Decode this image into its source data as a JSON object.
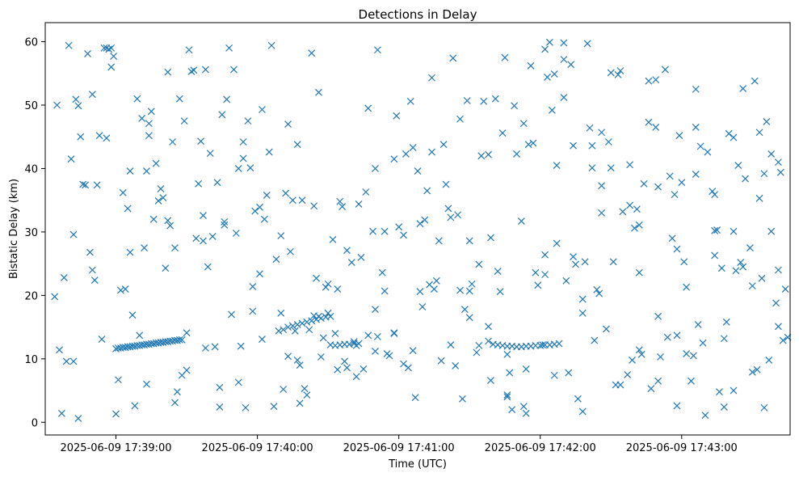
{
  "chart_data": {
    "type": "scatter",
    "title": "Detections in Delay",
    "xlabel": "Time (UTC)",
    "ylabel": "Bistatic Delay (km)",
    "marker": "x",
    "color": "#1f77b4",
    "grid": false,
    "x_unit": "seconds after 2025-06-09 17:38:00 UTC",
    "xlim": [
      30,
      346
    ],
    "ylim": [
      -2,
      63
    ],
    "x_ticks": [
      {
        "value": 60,
        "label": "2025-06-09 17:39:00"
      },
      {
        "value": 120,
        "label": "2025-06-09 17:40:00"
      },
      {
        "value": 180,
        "label": "2025-06-09 17:41:00"
      },
      {
        "value": 240,
        "label": "2025-06-09 17:42:00"
      },
      {
        "value": 300,
        "label": "2025-06-09 17:43:00"
      }
    ],
    "y_ticks": [
      {
        "value": 0,
        "label": "0"
      },
      {
        "value": 10,
        "label": "10"
      },
      {
        "value": 20,
        "label": "20"
      },
      {
        "value": 30,
        "label": "30"
      },
      {
        "value": 40,
        "label": "40"
      },
      {
        "value": 50,
        "label": "50"
      },
      {
        "value": 60,
        "label": "60"
      }
    ],
    "series": [
      {
        "x": [
          60,
          61,
          62,
          63,
          64,
          65,
          66,
          67,
          68,
          69,
          70,
          71,
          72,
          73,
          74,
          75,
          76,
          77,
          78,
          79,
          80,
          81,
          82,
          83,
          84,
          85,
          86,
          87,
          88,
          129,
          131,
          133,
          135,
          137,
          139,
          141,
          143,
          145,
          147,
          149,
          151,
          153,
          155,
          157,
          159,
          161,
          163,
          220,
          222,
          224,
          226,
          228,
          230,
          232,
          234,
          236,
          238,
          240,
          242,
          244,
          246,
          248,
          38,
          40,
          42,
          45,
          50,
          52,
          55,
          57,
          62,
          65,
          70,
          73,
          78,
          82,
          86,
          92,
          96,
          100,
          104,
          108,
          112,
          116,
          122,
          126,
          132,
          136,
          140,
          144,
          148,
          150,
          154,
          158,
          162,
          166,
          170,
          174,
          178,
          182,
          186,
          190,
          194,
          198,
          202,
          206,
          210,
          214,
          218,
          222,
          226,
          230,
          234,
          238,
          242,
          246,
          250,
          254,
          258,
          262,
          266,
          270,
          274,
          278,
          282,
          286,
          290,
          294,
          298,
          302,
          306,
          310,
          314,
          318,
          322,
          326,
          330,
          334,
          338,
          36,
          41,
          44,
          48,
          53,
          58,
          63,
          67,
          72,
          76,
          81,
          85,
          89,
          94,
          98,
          102,
          106,
          110,
          115,
          119,
          124,
          128,
          133,
          137,
          142,
          146,
          151,
          155,
          160,
          164,
          169,
          173,
          178,
          182,
          187,
          191,
          196,
          200,
          205,
          209,
          214,
          218,
          223,
          227,
          232,
          236,
          241,
          245,
          250,
          254,
          259,
          263,
          268,
          272,
          277,
          281,
          286,
          290,
          295,
          299,
          304,
          308,
          313,
          317,
          322,
          326,
          331,
          335,
          340,
          343,
          37,
          43,
          47,
          51,
          56,
          61,
          66,
          71,
          75,
          80,
          84,
          88,
          93,
          97,
          101,
          105,
          109,
          113,
          117,
          121,
          125,
          130,
          134,
          139,
          143,
          147,
          152,
          156,
          161,
          165,
          170,
          174,
          179,
          183,
          188,
          192,
          197,
          201,
          206,
          210,
          215,
          219,
          224,
          228,
          233,
          237,
          242,
          246,
          251,
          255,
          260,
          264,
          269,
          273,
          278,
          282,
          287,
          291,
          296,
          300,
          305,
          309,
          314,
          318,
          323,
          327,
          332,
          336,
          341,
          344,
          39,
          46,
          54,
          59,
          64,
          69,
          74,
          79,
          83,
          87,
          91,
          95,
          99,
          103,
          107,
          111,
          114,
          118,
          123,
          127,
          131,
          135,
          138,
          141,
          145,
          149,
          153,
          157,
          163,
          167,
          171,
          175,
          180,
          184,
          189,
          193,
          199,
          203,
          207,
          211,
          216,
          221,
          225,
          229,
          235,
          239,
          243,
          247,
          252,
          256,
          261,
          265,
          270,
          275,
          279,
          284,
          289,
          293,
          297,
          302,
          307,
          311,
          315,
          320,
          324,
          329,
          333,
          337,
          342,
          345,
          34,
          49,
          60,
          68,
          77,
          90,
          97,
          112,
          121,
          133,
          144,
          158,
          167,
          176,
          185,
          195,
          204,
          213,
          226,
          233,
          244,
          253,
          262,
          271,
          280,
          289,
          298,
          306,
          316,
          325,
          335,
          341,
          44,
          56,
          73,
          85,
          104,
          118,
          137,
          150,
          171,
          189,
          208,
          219,
          247,
          258,
          266,
          283,
          301,
          319,
          333,
          35,
          42,
          50,
          58,
          66,
          74,
          82,
          90,
          98,
          106,
          114,
          122,
          130,
          138,
          146,
          154,
          162,
          170,
          178,
          186,
          194,
          202,
          210,
          218,
          226,
          234,
          242,
          250,
          258,
          266,
          274,
          282,
          290,
          298,
          306,
          314,
          322,
          330,
          338,
          341
        ],
        "y": [
          11.6,
          11.7,
          11.7,
          11.8,
          11.8,
          11.9,
          11.9,
          12.0,
          12.0,
          12.1,
          12.1,
          12.2,
          12.2,
          12.3,
          12.3,
          12.4,
          12.4,
          12.5,
          12.5,
          12.6,
          12.6,
          12.7,
          12.7,
          12.8,
          12.8,
          12.9,
          12.9,
          13.0,
          13.0,
          14.4,
          14.6,
          15.0,
          15.2,
          15.4,
          15.6,
          15.8,
          16.0,
          16.2,
          16.4,
          16.6,
          12.2,
          12.1,
          12.2,
          12.3,
          12.3,
          12.4,
          12.4,
          12.3,
          12.2,
          12.1,
          12.0,
          12.0,
          11.9,
          11.9,
          12.0,
          12.0,
          12.1,
          12.1,
          12.2,
          12.2,
          12.3,
          12.4,
          22.8,
          59.4,
          29.6,
          45.0,
          51.7,
          37.4,
          59.0,
          58.8,
          20.8,
          33.7,
          13.7,
          39.6,
          34.9,
          31.8,
          4.8,
          55.3,
          44.3,
          42.4,
          5.5,
          59.0,
          40.0,
          47.5,
          13.1,
          59.4,
          36.1,
          14.4,
          5.3,
          34.1,
          13.3,
          21.8,
          8.3,
          27.1,
          12.1,
          36.3,
          40.0,
          20.7,
          14.0,
          29.5,
          43.3,
          18.2,
          42.6,
          9.7,
          12.2,
          20.8,
          28.6,
          12.1,
          15.1,
          23.8,
          4.3,
          42.3,
          8.4,
          23.6,
          58.8,
          7.4,
          57.2,
          26.1,
          17.2,
          40.1,
          45.7,
          40.1,
          5.9,
          40.6,
          11.4,
          47.3,
          37.1,
          13.4,
          27.3,
          21.3,
          46.5,
          1.1,
          35.9,
          2.4,
          30.1,
          52.6,
          7.9,
          22.7,
          42.3,
          11.4,
          41.5,
          0.6,
          58.1,
          45.2,
          59.0,
          36.2,
          16.9,
          27.5,
          32.0,
          24.3,
          27.5,
          47.5,
          29.0,
          11.7,
          11.9,
          31.1,
          55.6,
          2.3,
          33.3,
          35.8,
          25.7,
          47.0,
          43.8,
          14.6,
          16.7,
          16.7,
          34.8,
          25.2,
          26.0,
          30.1,
          23.6,
          14.1,
          9.2,
          3.9,
          31.9,
          22.3,
          37.5,
          32.7,
          50.7,
          24.9,
          12.8,
          20.6,
          7.8,
          31.7,
          56.2,
          12.2,
          49.2,
          51.2,
          43.6,
          25.3,
          12.9,
          14.7,
          5.9,
          7.5,
          33.6,
          53.8,
          6.5,
          38.8,
          45.2,
          6.5,
          43.5,
          36.4,
          24.3,
          5.0,
          24.5,
          53.8,
          2.3,
          18.8,
          12.9,
          1.4,
          50.9,
          37.4,
          22.4,
          59.0,
          6.7,
          26.8,
          47.9,
          49.0,
          35.4,
          44.2,
          7.4,
          55.5,
          32.6,
          29.3,
          48.5,
          17.0,
          12.0,
          40.1,
          23.4,
          42.6,
          17.2,
          26.9,
          35.0,
          58.2,
          10.3,
          28.8,
          34.0,
          12.7,
          8.4,
          11.2,
          30.1,
          48.3,
          42.3,
          39.6,
          36.5,
          28.6,
          33.7,
          47.8,
          20.7,
          42.0,
          29.1,
          45.6,
          2.0,
          2.5,
          44.0,
          23.3,
          54.9,
          22.3,
          24.9,
          59.7,
          20.9,
          44.2,
          54.8,
          34.2,
          31.1,
          5.3,
          10.3,
          29.0,
          37.8,
          10.5,
          12.5,
          26.3,
          13.2,
          23.9,
          38.4,
          8.3,
          47.4,
          15.1,
          21.0,
          9.6,
          37.5,
          13.1,
          57.7,
          21.0,
          51.0,
          45.2,
          36.8,
          31.0,
          51.0,
          58.7,
          37.6,
          24.5,
          37.8,
          50.9,
          29.8,
          44.2,
          17.5,
          32.0,
          2.5,
          5.2,
          35.0,
          9.0,
          4.3,
          22.7,
          21.3,
          14.0,
          9.6,
          34.4,
          49.5,
          58.7,
          10.8,
          30.8,
          8.6,
          20.6,
          21.7,
          43.8,
          57.4,
          3.7,
          21.8,
          50.6,
          51.0,
          57.5,
          49.9,
          43.8,
          21.6,
          54.4,
          28.2,
          7.8,
          3.7,
          46.4,
          20.3,
          55.1,
          33.2,
          9.8,
          37.6,
          54.0,
          55.6,
          35.9,
          10.8,
          15.4,
          42.6,
          30.3,
          45.5,
          40.5,
          27.5,
          35.3,
          9.8,
          39.4,
          13.4,
          19.8,
          26.8,
          1.3,
          2.6,
          40.8,
          8.2,
          28.6,
          6.3,
          33.9,
          10.4,
          16.8,
          8.6,
          13.7,
          10.5,
          50.6,
          21.0,
          8.9,
          11.0,
          4.0,
          47.1,
          59.9,
          56.4,
          43.6,
          25.3,
          30.6,
          46.5,
          13.7,
          52.5,
          4.8,
          25.2,
          39.2,
          41.0,
          49.9,
          44.8,
          6.0,
          3.1,
          2.4,
          21.4,
          9.8,
          17.2,
          13.5,
          31.3,
          17.8,
          6.6,
          40.5,
          1.7,
          37.3,
          10.7,
          25.3,
          15.8,
          45.7,
          50.0,
          9.6,
          24.0,
          56.0,
          39.6,
          47.1,
          55.2,
          14.1,
          55.6,
          31.6,
          41.6,
          49.3,
          29.4,
          3.0,
          52.0,
          21.0,
          7.2,
          17.8,
          41.5,
          11.3,
          54.3,
          32.3,
          16.5,
          42.2,
          10.7,
          1.4,
          26.4,
          59.8,
          19.4,
          33.0,
          55.4,
          23.6,
          16.7,
          2.6,
          39.1,
          30.2,
          44.9,
          21.5,
          30.1,
          24.0
        ]
      }
    ]
  }
}
